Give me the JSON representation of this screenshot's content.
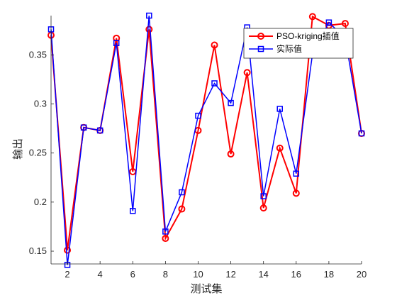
{
  "chart_data": {
    "type": "line",
    "title": "",
    "xlabel": "测试集",
    "ylabel": "输出",
    "xlim": [
      1,
      20
    ],
    "ylim": [
      0.137,
      0.39
    ],
    "x": [
      1,
      2,
      3,
      4,
      5,
      6,
      7,
      8,
      9,
      10,
      11,
      12,
      13,
      14,
      15,
      16,
      17,
      18,
      19,
      20
    ],
    "xticks": [
      2,
      4,
      6,
      8,
      10,
      12,
      14,
      16,
      18,
      20
    ],
    "yticks": [
      0.15,
      0.2,
      0.25,
      0.3,
      0.35
    ],
    "ytick_labels": [
      "0.15",
      "0.2",
      "0.25",
      "0.3",
      "0.35"
    ],
    "grid": false,
    "legend_position": "top-right",
    "series": [
      {
        "name": "PSO-kriging插值",
        "color": "#ff0000",
        "marker": "circle",
        "values": [
          0.37,
          0.151,
          0.276,
          0.273,
          0.367,
          0.231,
          0.376,
          0.163,
          0.193,
          0.273,
          0.36,
          0.249,
          0.332,
          0.194,
          0.255,
          0.209,
          0.389,
          0.38,
          0.382,
          0.27
        ]
      },
      {
        "name": "实际值",
        "color": "#0000ff",
        "marker": "square",
        "values": [
          0.376,
          0.136,
          0.276,
          0.273,
          0.362,
          0.191,
          0.39,
          0.17,
          0.21,
          0.288,
          0.321,
          0.301,
          0.378,
          0.206,
          0.295,
          0.229,
          0.351,
          0.383,
          0.367,
          0.27
        ]
      }
    ]
  }
}
